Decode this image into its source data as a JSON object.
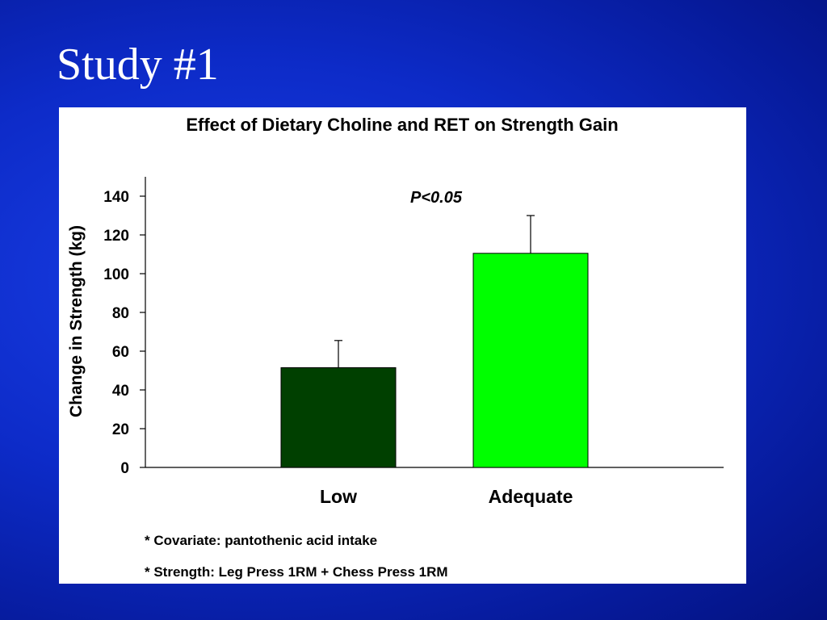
{
  "slide": {
    "title": "Study #1"
  },
  "chart_data": {
    "type": "bar",
    "title": "Effect of Dietary Choline and RET on Strength Gain",
    "xlabel": "",
    "ylabel": "Change in Strength (kg)",
    "categories": [
      "Low",
      "Adequate"
    ],
    "values": [
      51.5,
      110.5
    ],
    "errors": [
      14,
      19.5
    ],
    "colors": [
      "#004000",
      "#00ff00"
    ],
    "ylim": [
      0,
      150
    ],
    "yticks": [
      0,
      20,
      40,
      60,
      80,
      100,
      120,
      140
    ],
    "grid": false,
    "annotation": "P<0.05",
    "footnotes": [
      "* Covariate: pantothenic acid intake",
      "* Strength: Leg Press 1RM + Chess Press 1RM"
    ]
  }
}
